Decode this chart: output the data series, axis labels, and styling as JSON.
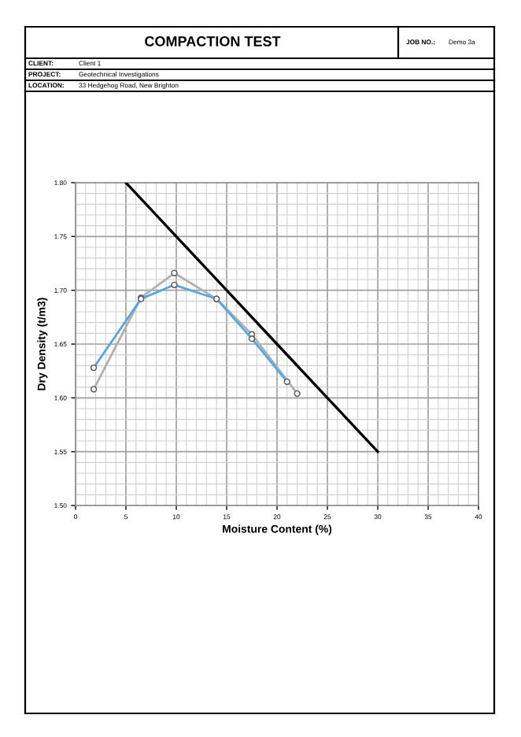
{
  "chart_data": {
    "type": "line",
    "title": "COMPACTION TEST",
    "xlabel": "Moisture Content (%)",
    "ylabel": "Dry Density (t/m3)",
    "annotations": [
      "JOB NO.:",
      "Demo 3a",
      "CLIENT:",
      "Client 1",
      "PROJECT:",
      "Geotechnical Investigations",
      "LOCATION:",
      "33 Hedgehog Road, New Brighton"
    ],
    "series": [
      {
        "color": "#000000",
        "marker": "none",
        "x": [
          5,
          10,
          15,
          20,
          25,
          30
        ],
        "values": [
          1.8,
          1.75,
          1.7,
          1.65,
          1.6,
          1.55
        ]
      },
      {
        "color": "#b0b0b0",
        "marker": "circle",
        "x": [
          1.8,
          6.5,
          9.8,
          14,
          17.5,
          22
        ],
        "values": [
          1.608,
          1.693,
          1.716,
          1.692,
          1.659,
          1.604
        ]
      },
      {
        "color": "#5aa7e0",
        "marker": "circle",
        "x": [
          1.8,
          6.5,
          9.8,
          14,
          17.5,
          21
        ],
        "values": [
          1.628,
          1.692,
          1.705,
          1.692,
          1.655,
          1.615
        ]
      }
    ],
    "xlim": [
      0,
      40
    ],
    "xticks": [
      0,
      5,
      10,
      15,
      20,
      25,
      30,
      35,
      40
    ],
    "ylim": [
      1.5,
      1.8
    ],
    "yticks": [
      {
        "value": 1.5,
        "label": "1.50"
      },
      {
        "value": 1.55,
        "label": "1.55"
      },
      {
        "value": 1.6,
        "label": "1.60"
      },
      {
        "value": 1.65,
        "label": "1.65"
      },
      {
        "value": 1.7,
        "label": "1.70"
      },
      {
        "value": 1.75,
        "label": "1.75"
      },
      {
        "value": 1.8,
        "label": "1.80"
      }
    ],
    "grid": true
  }
}
